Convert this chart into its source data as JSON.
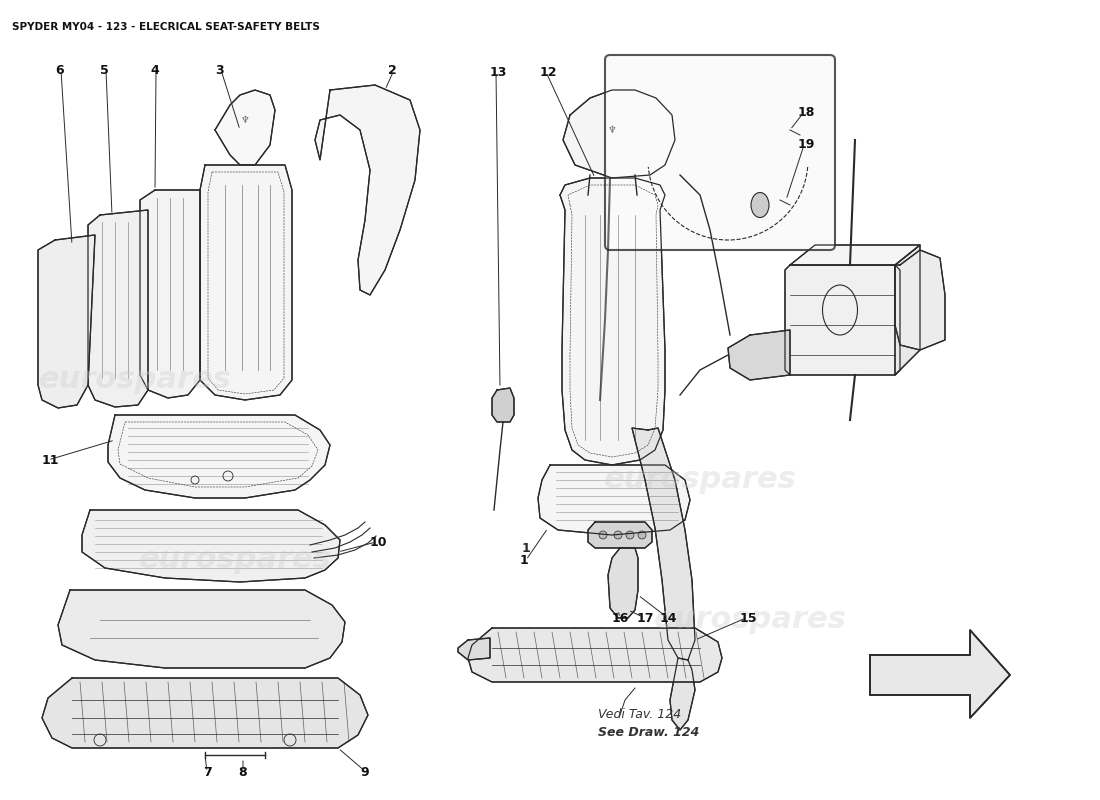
{
  "title": "SPYDER MY04 - 123 - ELECRICAL SEAT-SAFETY BELTS",
  "title_fontsize": 7.5,
  "background_color": "#ffffff",
  "watermark_text": "eurospares",
  "watermark_color": "#cccccc",
  "reference_text_line1": "Vedi Tav. 124",
  "reference_text_line2": "See Draw. 124",
  "line_color": "#2a2a2a",
  "label_fontsize": 9,
  "wm_fontsize": 22,
  "wm_alpha": 0.35
}
